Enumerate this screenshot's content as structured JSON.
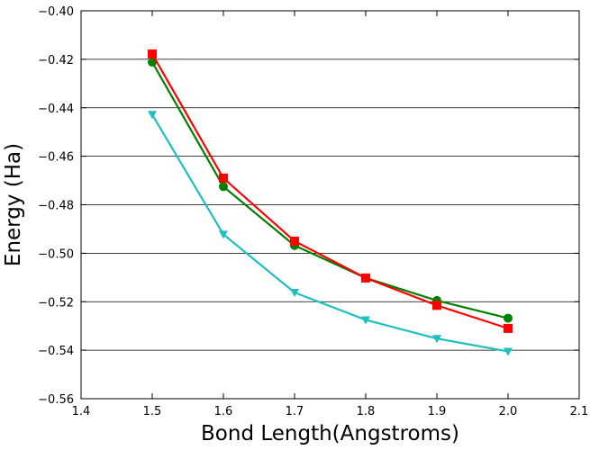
{
  "chart_data": {
    "type": "line",
    "title": "",
    "xlabel": "Bond Length(Angstroms)",
    "ylabel": "Energy (Ha)",
    "xlim": [
      1.4,
      2.1
    ],
    "ylim": [
      -0.56,
      -0.4
    ],
    "grid": "horizontal",
    "x_ticks": [
      "1.4",
      "1.5",
      "1.6",
      "1.7",
      "1.8",
      "1.9",
      "2.0",
      "2.1"
    ],
    "y_ticks": [
      "−0.40",
      "−0.42",
      "−0.44",
      "−0.46",
      "−0.48",
      "−0.50",
      "−0.52",
      "−0.54",
      "−0.56"
    ],
    "x": [
      1.5,
      1.6,
      1.7,
      1.8,
      1.9,
      2.0
    ],
    "series": [
      {
        "color": "#008000",
        "marker": "circle",
        "values": [
          -0.4212,
          -0.4725,
          -0.4968,
          -0.5102,
          -0.5195,
          -0.5268
        ]
      },
      {
        "color": "#ff0000",
        "marker": "square",
        "values": [
          -0.4178,
          -0.469,
          -0.495,
          -0.5102,
          -0.5215,
          -0.531
        ]
      },
      {
        "color": "#1fbfbf",
        "marker": "triangle-down",
        "values": [
          -0.4428,
          -0.4922,
          -0.5162,
          -0.5275,
          -0.5352,
          -0.5405
        ]
      }
    ]
  }
}
